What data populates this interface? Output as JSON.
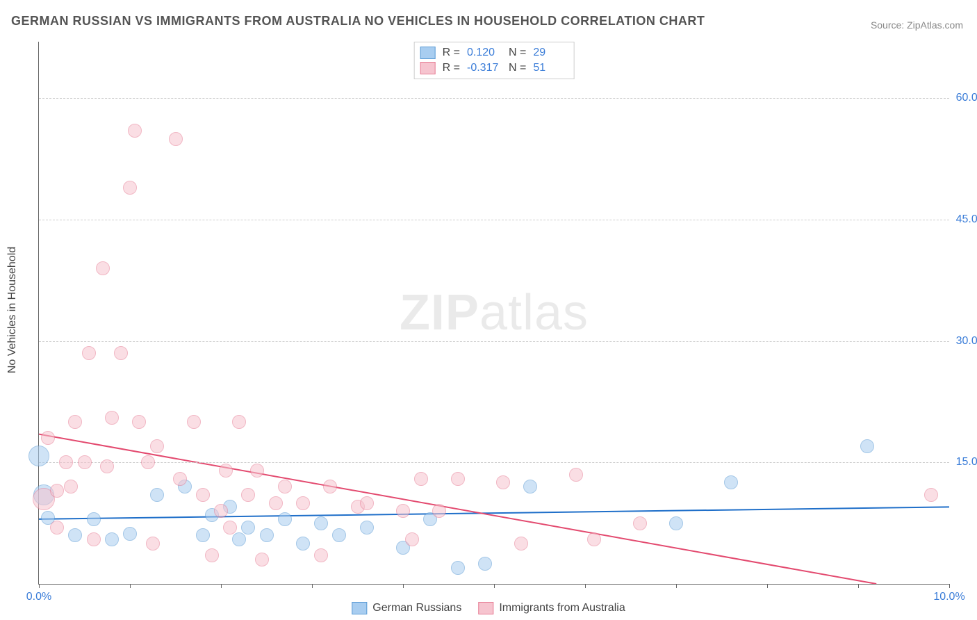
{
  "title": "GERMAN RUSSIAN VS IMMIGRANTS FROM AUSTRALIA NO VEHICLES IN HOUSEHOLD CORRELATION CHART",
  "source_label": "Source: ZipAtlas.com",
  "y_axis_label": "No Vehicles in Household",
  "watermark_bold": "ZIP",
  "watermark_thin": "atlas",
  "chart": {
    "type": "scatter",
    "xlim": [
      0,
      10
    ],
    "ylim": [
      0,
      67
    ],
    "x_ticks": [
      0,
      1,
      2,
      3,
      4,
      5,
      6,
      7,
      8,
      9,
      10
    ],
    "x_tick_labels": {
      "0": "0.0%",
      "10": "10.0%"
    },
    "y_gridlines": [
      15,
      30,
      45,
      60
    ],
    "y_tick_labels": {
      "15": "15.0%",
      "30": "30.0%",
      "45": "45.0%",
      "60": "60.0%"
    },
    "background_color": "#ffffff",
    "grid_color": "#cccccc",
    "axis_label_color": "#3b7dd8",
    "marker_size": 18,
    "marker_opacity": 0.55,
    "line_width": 2
  },
  "series": [
    {
      "name": "German Russians",
      "fill_color": "#a8cdf0",
      "stroke_color": "#5b9bd5",
      "line_color": "#1f6fc9",
      "R": "0.120",
      "N": "29",
      "trend": {
        "x1": 0,
        "y1": 8.0,
        "x2": 10,
        "y2": 9.5
      },
      "points": [
        {
          "x": 0.0,
          "y": 15.8,
          "size": 28
        },
        {
          "x": 0.05,
          "y": 11.0,
          "size": 28
        },
        {
          "x": 0.1,
          "y": 8.2
        },
        {
          "x": 0.4,
          "y": 6.0
        },
        {
          "x": 0.6,
          "y": 8.0
        },
        {
          "x": 0.8,
          "y": 5.5
        },
        {
          "x": 1.0,
          "y": 6.2
        },
        {
          "x": 1.3,
          "y": 11.0
        },
        {
          "x": 1.6,
          "y": 12.0
        },
        {
          "x": 1.8,
          "y": 6.0
        },
        {
          "x": 1.9,
          "y": 8.5
        },
        {
          "x": 2.1,
          "y": 9.5
        },
        {
          "x": 2.2,
          "y": 5.5
        },
        {
          "x": 2.3,
          "y": 7.0
        },
        {
          "x": 2.5,
          "y": 6.0
        },
        {
          "x": 2.7,
          "y": 8.0
        },
        {
          "x": 2.9,
          "y": 5.0
        },
        {
          "x": 3.1,
          "y": 7.5
        },
        {
          "x": 3.3,
          "y": 6.0
        },
        {
          "x": 3.6,
          "y": 7.0
        },
        {
          "x": 4.0,
          "y": 4.5
        },
        {
          "x": 4.3,
          "y": 8.0
        },
        {
          "x": 4.6,
          "y": 2.0
        },
        {
          "x": 4.9,
          "y": 2.5
        },
        {
          "x": 5.4,
          "y": 12.0
        },
        {
          "x": 7.0,
          "y": 7.5
        },
        {
          "x": 7.6,
          "y": 12.5
        },
        {
          "x": 9.1,
          "y": 17.0
        }
      ]
    },
    {
      "name": "Immigrants from Australia",
      "fill_color": "#f6c4cf",
      "stroke_color": "#e77d95",
      "line_color": "#e34a6f",
      "R": "-0.317",
      "N": "51",
      "trend": {
        "x1": 0,
        "y1": 18.5,
        "x2": 9.2,
        "y2": 0
      },
      "points": [
        {
          "x": 0.05,
          "y": 10.5,
          "size": 30
        },
        {
          "x": 0.1,
          "y": 18.0
        },
        {
          "x": 0.2,
          "y": 7.0
        },
        {
          "x": 0.2,
          "y": 11.5
        },
        {
          "x": 0.3,
          "y": 15.0
        },
        {
          "x": 0.35,
          "y": 12.0
        },
        {
          "x": 0.4,
          "y": 20.0
        },
        {
          "x": 0.5,
          "y": 15.0
        },
        {
          "x": 0.55,
          "y": 28.5
        },
        {
          "x": 0.6,
          "y": 5.5
        },
        {
          "x": 0.7,
          "y": 39.0
        },
        {
          "x": 0.75,
          "y": 14.5
        },
        {
          "x": 0.8,
          "y": 20.5
        },
        {
          "x": 0.9,
          "y": 28.5
        },
        {
          "x": 1.0,
          "y": 49.0
        },
        {
          "x": 1.05,
          "y": 56.0
        },
        {
          "x": 1.1,
          "y": 20.0
        },
        {
          "x": 1.2,
          "y": 15.0
        },
        {
          "x": 1.25,
          "y": 5.0
        },
        {
          "x": 1.3,
          "y": 17.0
        },
        {
          "x": 1.5,
          "y": 55.0
        },
        {
          "x": 1.55,
          "y": 13.0
        },
        {
          "x": 1.7,
          "y": 20.0
        },
        {
          "x": 1.8,
          "y": 11.0
        },
        {
          "x": 1.9,
          "y": 3.5
        },
        {
          "x": 2.0,
          "y": 9.0
        },
        {
          "x": 2.05,
          "y": 14.0
        },
        {
          "x": 2.1,
          "y": 7.0
        },
        {
          "x": 2.2,
          "y": 20.0
        },
        {
          "x": 2.3,
          "y": 11.0
        },
        {
          "x": 2.4,
          "y": 14.0
        },
        {
          "x": 2.45,
          "y": 3.0
        },
        {
          "x": 2.6,
          "y": 10.0
        },
        {
          "x": 2.7,
          "y": 12.0
        },
        {
          "x": 2.9,
          "y": 10.0
        },
        {
          "x": 3.1,
          "y": 3.5
        },
        {
          "x": 3.2,
          "y": 12.0
        },
        {
          "x": 3.5,
          "y": 9.5
        },
        {
          "x": 3.6,
          "y": 10.0
        },
        {
          "x": 4.0,
          "y": 9.0
        },
        {
          "x": 4.1,
          "y": 5.5
        },
        {
          "x": 4.2,
          "y": 13.0
        },
        {
          "x": 4.4,
          "y": 9.0
        },
        {
          "x": 4.6,
          "y": 13.0
        },
        {
          "x": 5.1,
          "y": 12.5
        },
        {
          "x": 5.3,
          "y": 5.0
        },
        {
          "x": 5.9,
          "y": 13.5
        },
        {
          "x": 6.1,
          "y": 5.5
        },
        {
          "x": 6.6,
          "y": 7.5
        },
        {
          "x": 9.8,
          "y": 11.0
        }
      ]
    }
  ],
  "legend_bottom": [
    {
      "label": "German Russians",
      "fill": "#a8cdf0",
      "stroke": "#5b9bd5"
    },
    {
      "label": "Immigrants from Australia",
      "fill": "#f6c4cf",
      "stroke": "#e77d95"
    }
  ]
}
